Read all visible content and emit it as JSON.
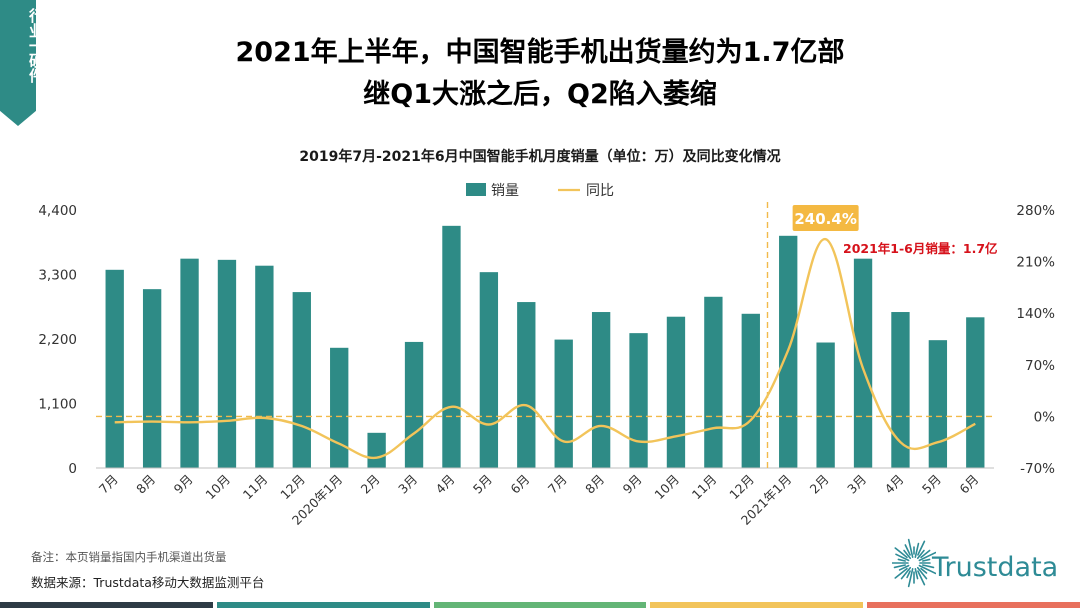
{
  "side_tag": "行业一硬件",
  "headline": {
    "line1": "2021年上半年，中国智能手机出货量约为1.7亿部",
    "line2": "继Q1大涨之后，Q2陷入萎缩"
  },
  "notes": {
    "remark": "备注：本页销量指国内手机渠道出货量",
    "source": "数据来源：Trustdata移动大数据监测平台"
  },
  "logo_text": "Trustdata",
  "colors": {
    "bar": "#2e8b86",
    "line": "#f2c45a",
    "reference": "#f2b94a",
    "highlight_box": "#f4b942",
    "annotation_red": "#d6121b",
    "bottom_strip": [
      "#2d3b45",
      "#2e8b86",
      "#63b576",
      "#f2c45a",
      "#e8705d"
    ]
  },
  "chart_data": {
    "type": "bar+line",
    "title": "2019年7月-2021年6月中国智能手机月度销量（单位：万）及同比变化情况",
    "categories": [
      "7月",
      "8月",
      "9月",
      "10月",
      "11月",
      "12月",
      "2020年1月",
      "2月",
      "3月",
      "4月",
      "5月",
      "6月",
      "7月",
      "8月",
      "9月",
      "10月",
      "11月",
      "12月",
      "2021年1月",
      "2月",
      "3月",
      "4月",
      "5月",
      "6月"
    ],
    "series": [
      {
        "name": "销量",
        "type": "bar",
        "axis": "left",
        "values": [
          3380,
          3050,
          3570,
          3550,
          3450,
          3000,
          2050,
          600,
          2150,
          4130,
          3340,
          2830,
          2190,
          2660,
          2300,
          2580,
          2920,
          2630,
          3960,
          2140,
          3570,
          2660,
          2180,
          2570
        ]
      },
      {
        "name": "同比",
        "type": "line",
        "axis": "right",
        "values": [
          -8,
          -7,
          -8,
          -6,
          -2,
          -13,
          -37,
          -56,
          -23,
          13,
          -11,
          15,
          -34,
          -13,
          -34,
          -27,
          -16,
          -5,
          90,
          240.4,
          65,
          -35,
          -35,
          -10
        ]
      }
    ],
    "y_left": {
      "range": [
        0,
        4400
      ],
      "ticks": [
        "0",
        "1,100",
        "2,200",
        "3,300",
        "4,400"
      ]
    },
    "y_right": {
      "range": [
        -70,
        280
      ],
      "ticks": [
        "-70%",
        "0%",
        "70%",
        "140%",
        "210%",
        "280%"
      ]
    },
    "reference_line_value": "0%",
    "divider_before_category": "2021年1月",
    "annotations": {
      "peak_label": "240.4%",
      "h1_total": "2021年1-6月销量：1.7亿"
    },
    "legend_position": "top-center",
    "grid": false
  }
}
